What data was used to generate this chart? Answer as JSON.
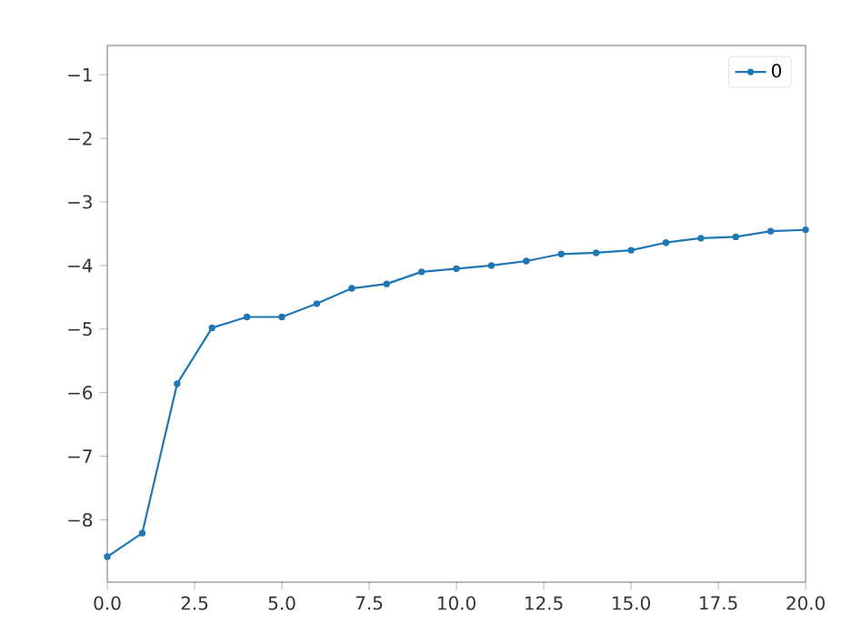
{
  "chart_data": {
    "type": "line",
    "x": [
      0,
      1,
      2,
      3,
      4,
      5,
      6,
      7,
      8,
      9,
      10,
      11,
      12,
      13,
      14,
      15,
      16,
      17,
      18,
      19,
      20
    ],
    "series": [
      {
        "name": "0",
        "color": "#1f77b4",
        "values": [
          -8.58,
          -8.21,
          -5.86,
          -4.98,
          -4.81,
          -4.81,
          -4.6,
          -4.36,
          -4.29,
          -4.1,
          -4.05,
          -4.0,
          -3.93,
          -3.82,
          -3.8,
          -3.76,
          -3.64,
          -3.57,
          -3.55,
          -3.46,
          -3.44
        ]
      }
    ],
    "xlim": [
      0,
      20
    ],
    "ylim": [
      -8.98,
      -0.54
    ],
    "xticks": [
      {
        "value": 0,
        "label": "0.0"
      },
      {
        "value": 2.5,
        "label": "2.5"
      },
      {
        "value": 5,
        "label": "5.0"
      },
      {
        "value": 7.5,
        "label": "7.5"
      },
      {
        "value": 10,
        "label": "10.0"
      },
      {
        "value": 12.5,
        "label": "12.5"
      },
      {
        "value": 15,
        "label": "15.0"
      },
      {
        "value": 17.5,
        "label": "17.5"
      },
      {
        "value": 20,
        "label": "20.0"
      }
    ],
    "yticks": [
      {
        "value": -8,
        "label": "−8"
      },
      {
        "value": -7,
        "label": "−7"
      },
      {
        "value": -6,
        "label": "−6"
      },
      {
        "value": -5,
        "label": "−5"
      },
      {
        "value": -4,
        "label": "−4"
      },
      {
        "value": -3,
        "label": "−3"
      },
      {
        "value": -2,
        "label": "−2"
      },
      {
        "value": -1,
        "label": "−1"
      }
    ],
    "legend": "top right",
    "marker": "circle",
    "line_style": "solid"
  }
}
